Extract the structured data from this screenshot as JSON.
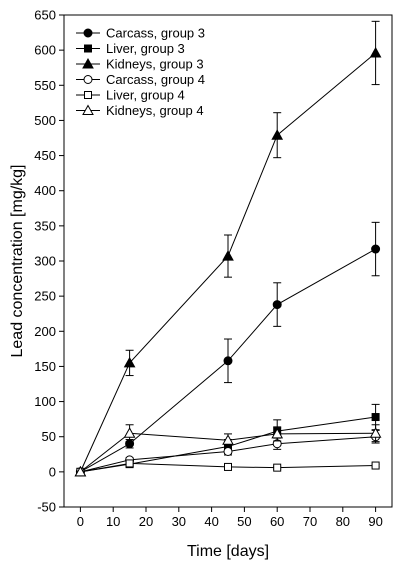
{
  "chart_data": {
    "type": "line",
    "xlabel": "Time [days]",
    "ylabel": "Lead concentration [mg/kg]",
    "xlim": [
      -5,
      95
    ],
    "ylim": [
      -50,
      650
    ],
    "x_ticks": [
      0,
      10,
      20,
      30,
      40,
      50,
      60,
      70,
      80,
      90
    ],
    "y_ticks": [
      -50,
      0,
      50,
      100,
      150,
      200,
      250,
      300,
      350,
      400,
      450,
      500,
      550,
      600,
      650
    ],
    "legend_position": "top-left",
    "series": [
      {
        "name": "Carcass, group 3",
        "marker": "circle",
        "filled": true,
        "x": [
          0,
          15,
          45,
          60,
          90
        ],
        "y": [
          0,
          40,
          158,
          238,
          317
        ],
        "err": [
          0,
          6,
          31,
          31,
          38
        ]
      },
      {
        "name": "Liver, group 3",
        "marker": "square",
        "filled": true,
        "x": [
          0,
          15,
          45,
          60,
          90
        ],
        "y": [
          0,
          11,
          36,
          58,
          78
        ],
        "err": [
          0,
          3,
          10,
          16,
          18
        ]
      },
      {
        "name": "Kidneys, group 3",
        "marker": "triangle",
        "filled": true,
        "x": [
          0,
          15,
          45,
          60,
          90
        ],
        "y": [
          0,
          155,
          307,
          479,
          596
        ],
        "err": [
          0,
          18,
          30,
          32,
          45
        ]
      },
      {
        "name": "Carcass, group 4",
        "marker": "circle",
        "filled": false,
        "x": [
          0,
          15,
          45,
          60,
          90
        ],
        "y": [
          0,
          17,
          29,
          40,
          50
        ],
        "err": [
          0,
          3,
          5,
          8,
          9
        ]
      },
      {
        "name": "Liver, group 4",
        "marker": "square",
        "filled": false,
        "x": [
          0,
          15,
          45,
          60,
          90
        ],
        "y": [
          0,
          12,
          7,
          6,
          9
        ],
        "err": [
          0,
          2,
          2,
          2,
          2
        ]
      },
      {
        "name": "Kidneys, group 4",
        "marker": "triangle",
        "filled": false,
        "x": [
          0,
          15,
          45,
          60,
          90
        ],
        "y": [
          0,
          55,
          45,
          54,
          55
        ],
        "err": [
          0,
          12,
          9,
          10,
          12
        ]
      }
    ]
  }
}
